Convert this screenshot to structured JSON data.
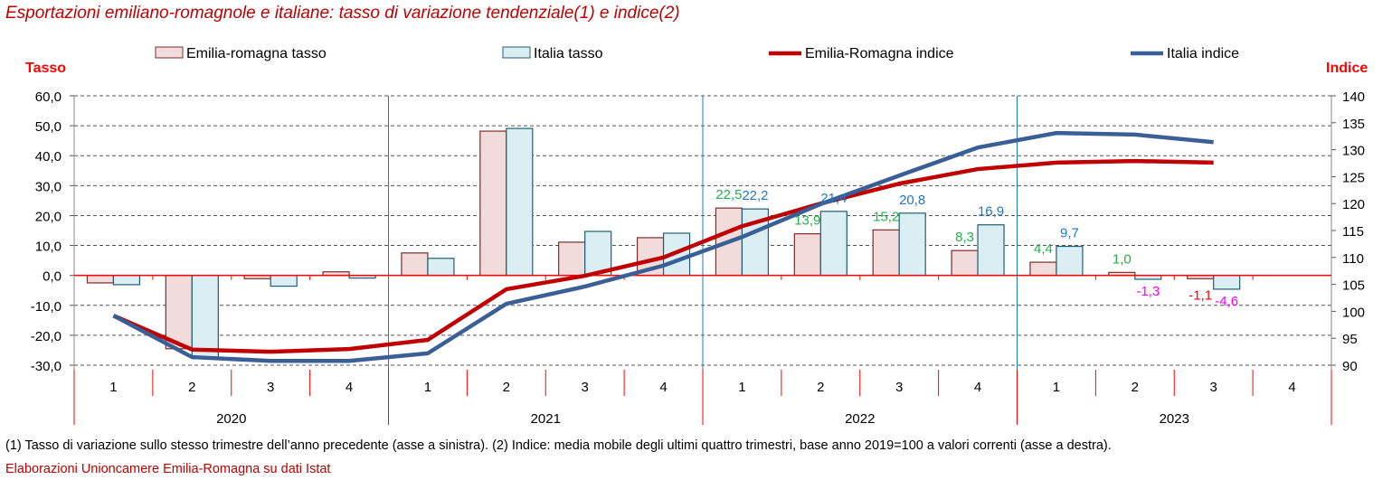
{
  "chart_data": {
    "type": "bar+line",
    "title": "Esportazioni emiliano-romagnole e italiane: tasso di variazione tendenziale(1) e indice(2)",
    "ylabel_left": "Tasso",
    "ylabel_right": "Indice",
    "ylim_left": [
      -30,
      60
    ],
    "yticks_left": [
      "60,0",
      "50,0",
      "40,0",
      "30,0",
      "20,0",
      "10,0",
      "0,0",
      "-10,0",
      "-20,0",
      "-30,0"
    ],
    "ylim_right": [
      90,
      140
    ],
    "yticks_right": [
      "140",
      "135",
      "130",
      "125",
      "120",
      "115",
      "110",
      "105",
      "100",
      "95",
      "90"
    ],
    "years": [
      "2020",
      "2021",
      "2022",
      "2023"
    ],
    "quarters": [
      "1",
      "2",
      "3",
      "4",
      "1",
      "2",
      "3",
      "4",
      "1",
      "2",
      "3",
      "4",
      "1",
      "2",
      "3",
      "4"
    ],
    "grid": true,
    "legend_position": "top",
    "series": [
      {
        "name": "Emilia-romagna tasso",
        "kind": "bar",
        "color": "#f2dcdb",
        "stroke": "#7b2c2c",
        "values": [
          -2.5,
          -24.5,
          -1.1,
          1.2,
          7.5,
          48.2,
          11.1,
          12.6,
          22.5,
          13.9,
          15.2,
          8.3,
          4.4,
          1.0,
          -1.1,
          null
        ]
      },
      {
        "name": "Italia tasso",
        "kind": "bar",
        "color": "#dbeef3",
        "stroke": "#1f5f6f",
        "values": [
          -3.1,
          -27.8,
          -3.6,
          -0.9,
          5.7,
          49.1,
          14.7,
          14.1,
          22.2,
          21.4,
          20.8,
          16.9,
          9.7,
          -1.3,
          -4.6,
          null
        ]
      },
      {
        "name": "Emilia-Romagna indice",
        "kind": "line",
        "axis": "right",
        "color": "#c00000",
        "values": [
          99.2,
          92.9,
          92.5,
          93.0,
          94.7,
          104.1,
          106.6,
          110.0,
          115.8,
          120.0,
          123.7,
          126.4,
          127.6,
          127.9,
          127.6,
          null
        ]
      },
      {
        "name": "Italia indice",
        "kind": "line",
        "axis": "right",
        "color": "#3a5f96",
        "values": [
          99.2,
          91.5,
          90.8,
          90.8,
          92.2,
          101.4,
          104.6,
          108.5,
          113.8,
          119.9,
          125.2,
          130.4,
          133.1,
          132.8,
          131.4,
          null
        ]
      }
    ],
    "data_labels": [
      {
        "index": 8,
        "series": 0,
        "text": "22,5",
        "color": "#22b14c"
      },
      {
        "index": 8,
        "series": 1,
        "text": "22,2",
        "color": "#1f77c8"
      },
      {
        "index": 9,
        "series": 0,
        "text": "13,9",
        "color": "#22b14c"
      },
      {
        "index": 9,
        "series": 1,
        "text": "21,4",
        "color": "#1f77c8"
      },
      {
        "index": 10,
        "series": 0,
        "text": "15,2",
        "color": "#22b14c"
      },
      {
        "index": 10,
        "series": 1,
        "text": "20,8",
        "color": "#1f77c8"
      },
      {
        "index": 11,
        "series": 0,
        "text": "8,3",
        "color": "#22b14c"
      },
      {
        "index": 11,
        "series": 1,
        "text": "16,9",
        "color": "#1f77c8"
      },
      {
        "index": 12,
        "series": 0,
        "text": "4,4",
        "color": "#22b14c"
      },
      {
        "index": 12,
        "series": 1,
        "text": "9,7",
        "color": "#1f77c8"
      },
      {
        "index": 13,
        "series": 0,
        "text": "1,0",
        "color": "#22b14c"
      },
      {
        "index": 13,
        "series": 1,
        "text": "-1,3",
        "color": "#ff00ff"
      },
      {
        "index": 14,
        "series": 0,
        "text": "-1,1",
        "color": "#ff0000"
      },
      {
        "index": 14,
        "series": 1,
        "text": "-4,6",
        "color": "#ff00ff"
      }
    ]
  },
  "footnote": "(1) Tasso di variazione sullo stesso trimestre dell’anno precedente (asse a sinistra). (2) Indice: media mobile degli ultimi quattro trimestri, base anno 2019=100 a valori correnti (asse a destra).",
  "source": "Elaborazioni Unioncamere Emilia-Romagna su dati Istat"
}
